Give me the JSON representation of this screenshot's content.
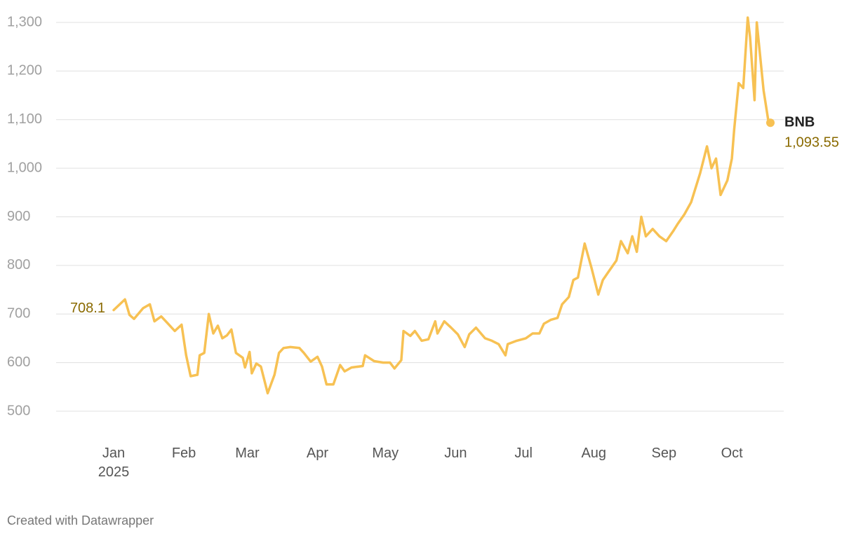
{
  "chart_data": {
    "type": "line",
    "x": [
      0,
      5,
      7,
      9,
      13,
      16,
      18,
      21,
      24,
      27,
      30,
      32,
      34,
      37,
      38,
      40,
      42,
      44,
      46,
      48,
      50,
      52,
      54,
      57,
      58,
      60,
      61,
      63,
      65,
      68,
      71,
      73,
      75,
      78,
      82,
      84,
      87,
      90,
      92,
      94,
      97,
      100,
      102,
      105,
      110,
      111,
      115,
      119,
      122,
      124,
      127,
      128,
      131,
      133,
      136,
      139,
      142,
      143,
      146,
      149,
      152,
      155,
      157,
      160,
      164,
      167,
      170,
      173,
      174,
      178,
      182,
      185,
      188,
      190,
      193,
      196,
      198,
      201,
      203,
      205,
      208,
      211,
      214,
      216,
      219,
      222,
      224,
      227,
      229,
      231,
      233,
      235,
      238,
      241,
      244,
      247,
      249,
      252,
      255,
      259,
      262,
      264,
      266,
      268,
      271,
      273,
      274,
      276,
      278,
      280,
      281,
      283,
      284,
      287,
      289,
      290
    ],
    "series": [
      {
        "name": "BNB",
        "color": "#f7c153",
        "values": [
          708.1,
          730,
          698,
          690,
          712,
          720,
          685,
          695,
          680,
          665,
          678,
          615,
          572,
          575,
          615,
          620,
          700,
          660,
          676,
          650,
          656,
          668,
          620,
          610,
          590,
          622,
          578,
          598,
          592,
          537,
          575,
          620,
          630,
          632,
          630,
          620,
          602,
          612,
          592,
          555,
          555,
          595,
          582,
          590,
          593,
          615,
          603,
          600,
          600,
          588,
          605,
          665,
          655,
          665,
          645,
          648,
          685,
          660,
          685,
          672,
          658,
          632,
          658,
          672,
          650,
          645,
          638,
          615,
          638,
          645,
          650,
          660,
          660,
          680,
          688,
          692,
          720,
          735,
          770,
          775,
          845,
          795,
          740,
          770,
          790,
          810,
          850,
          825,
          860,
          828,
          900,
          860,
          875,
          860,
          850,
          870,
          885,
          905,
          930,
          990,
          1045,
          1000,
          1020,
          945,
          975,
          1020,
          1080,
          1175,
          1165,
          1310,
          1270,
          1140,
          1300,
          1160,
          1100,
          1093.55
        ],
        "value_labels": [
          "708.1",
          null,
          null,
          null,
          null,
          null,
          null,
          null,
          null,
          null,
          null,
          null,
          null,
          null,
          null,
          null,
          null,
          null,
          null,
          null,
          null,
          null,
          null,
          null,
          null,
          null,
          null,
          null,
          null,
          null,
          null,
          null,
          null,
          null,
          null,
          null,
          null,
          null,
          null,
          null,
          null,
          null,
          null,
          null,
          null,
          null,
          null,
          null,
          null,
          null,
          null,
          null,
          null,
          null,
          null,
          null,
          null,
          null,
          null,
          null,
          null,
          null,
          null,
          null,
          null,
          null,
          null,
          null,
          null,
          null,
          null,
          null,
          null,
          null,
          null,
          null,
          null,
          null,
          null,
          null,
          null,
          null,
          null,
          null,
          null,
          null,
          null,
          null,
          null,
          null,
          null,
          null,
          null,
          null,
          null,
          null,
          null,
          null,
          null,
          null,
          null,
          null,
          null,
          null,
          null,
          null,
          null,
          null,
          null,
          null,
          null,
          null,
          null,
          null,
          null,
          "1,093.55"
        ]
      }
    ],
    "xlim": [
      0,
      290
    ],
    "xticks": [
      {
        "value": 0,
        "label": "Jan 2025"
      },
      {
        "value": 31,
        "label": "Feb"
      },
      {
        "value": 59,
        "label": "Mar"
      },
      {
        "value": 90,
        "label": "Apr"
      },
      {
        "value": 120,
        "label": "May"
      },
      {
        "value": 151,
        "label": "Jun"
      },
      {
        "value": 181,
        "label": "Jul"
      },
      {
        "value": 212,
        "label": "Aug"
      },
      {
        "value": 243,
        "label": "Sep"
      },
      {
        "value": 273,
        "label": "Oct"
      }
    ],
    "ylim": [
      500,
      1300
    ],
    "yticks": [
      500,
      600,
      700,
      800,
      900,
      {
        "value": 1000,
        "label": "1,000"
      },
      {
        "value": 1100,
        "label": "1,100"
      },
      {
        "value": 1200,
        "label": "1,200"
      },
      {
        "value": 1300,
        "label": "1,300"
      }
    ],
    "grid": true,
    "label_color": "#8a6a00"
  },
  "footer": "Created with Datawrapper"
}
